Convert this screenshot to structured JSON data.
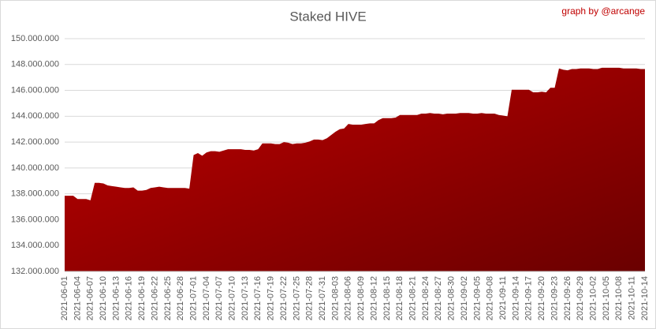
{
  "chart_data": {
    "type": "area",
    "title": "Staked HIVE",
    "credit": "graph by @arcange",
    "x": [
      "2021-06-01",
      null,
      null,
      "2021-06-04",
      null,
      null,
      "2021-06-07",
      null,
      null,
      "2021-06-10",
      null,
      null,
      "2021-06-13",
      null,
      null,
      "2021-06-16",
      null,
      null,
      "2021-06-19",
      null,
      null,
      "2021-06-22",
      null,
      null,
      "2021-06-25",
      null,
      null,
      "2021-06-28",
      null,
      null,
      "2021-07-01",
      null,
      null,
      "2021-07-04",
      null,
      null,
      "2021-07-07",
      null,
      null,
      "2021-07-10",
      null,
      null,
      "2021-07-13",
      null,
      null,
      "2021-07-16",
      null,
      null,
      "2021-07-19",
      null,
      null,
      "2021-07-22",
      null,
      null,
      "2021-07-25",
      null,
      null,
      "2021-07-28",
      null,
      null,
      "2021-07-31",
      null,
      null,
      "2021-08-03",
      null,
      null,
      "2021-08-06",
      null,
      null,
      "2021-08-09",
      null,
      null,
      "2021-08-12",
      null,
      null,
      "2021-08-15",
      null,
      null,
      "2021-08-18",
      null,
      null,
      "2021-08-21",
      null,
      null,
      "2021-08-24",
      null,
      null,
      "2021-08-27",
      null,
      null,
      "2021-08-30",
      null,
      null,
      "2021-09-02",
      null,
      null,
      "2021-09-05",
      null,
      null,
      "2021-09-08",
      null,
      null,
      "2021-09-11",
      null,
      null,
      "2021-09-14",
      null,
      null,
      "2021-09-17",
      null,
      null,
      "2021-09-20",
      null,
      null,
      "2021-09-23",
      null,
      null,
      "2021-09-26",
      null,
      null,
      "2021-09-29",
      null,
      null,
      "2021-10-02",
      null,
      null,
      "2021-10-05",
      null,
      null,
      "2021-10-08",
      null,
      null,
      "2021-10-11",
      null,
      null,
      "2021-10-14"
    ],
    "values": [
      137850000,
      137850000,
      137850000,
      137600000,
      137600000,
      137600000,
      137500000,
      138850000,
      138850000,
      138800000,
      138650000,
      138600000,
      138550000,
      138500000,
      138450000,
      138450000,
      138500000,
      138250000,
      138250000,
      138300000,
      138450000,
      138500000,
      138550000,
      138500000,
      138450000,
      138450000,
      138450000,
      138450000,
      138450000,
      138400000,
      141000000,
      141150000,
      140950000,
      141200000,
      141300000,
      141300000,
      141250000,
      141350000,
      141450000,
      141450000,
      141450000,
      141450000,
      141400000,
      141400000,
      141350000,
      141450000,
      141900000,
      141900000,
      141900000,
      141850000,
      141850000,
      142000000,
      141950000,
      141850000,
      141900000,
      141900000,
      141950000,
      142050000,
      142200000,
      142200000,
      142150000,
      142300000,
      142550000,
      142800000,
      143000000,
      143050000,
      143400000,
      143350000,
      143350000,
      143350000,
      143400000,
      143450000,
      143450000,
      143700000,
      143850000,
      143850000,
      143850000,
      143900000,
      144100000,
      144100000,
      144100000,
      144100000,
      144100000,
      144200000,
      144200000,
      144250000,
      144200000,
      144200000,
      144150000,
      144200000,
      144200000,
      144200000,
      144250000,
      144250000,
      144250000,
      144200000,
      144200000,
      144250000,
      144200000,
      144200000,
      144200000,
      144100000,
      144050000,
      144000000,
      146050000,
      146050000,
      146050000,
      146050000,
      146050000,
      145850000,
      145850000,
      145900000,
      145850000,
      146200000,
      146200000,
      147700000,
      147600000,
      147550000,
      147650000,
      147650000,
      147700000,
      147700000,
      147700000,
      147650000,
      147650000,
      147750000,
      147750000,
      147750000,
      147750000,
      147750000,
      147700000,
      147700000,
      147700000,
      147700000,
      147650000,
      147650000
    ],
    "color": "#c00000",
    "ylim": [
      132000000,
      150000000
    ],
    "yticks": [
      {
        "value": 132000000,
        "label": "132.000.000"
      },
      {
        "value": 134000000,
        "label": "134.000.000"
      },
      {
        "value": 136000000,
        "label": "136.000.000"
      },
      {
        "value": 138000000,
        "label": "138.000.000"
      },
      {
        "value": 140000000,
        "label": "140.000.000"
      },
      {
        "value": 142000000,
        "label": "142.000.000"
      },
      {
        "value": 144000000,
        "label": "144.000.000"
      },
      {
        "value": 146000000,
        "label": "146.000.000"
      },
      {
        "value": 148000000,
        "label": "148.000.000"
      },
      {
        "value": 150000000,
        "label": "150.000.000"
      }
    ],
    "grid": true
  }
}
